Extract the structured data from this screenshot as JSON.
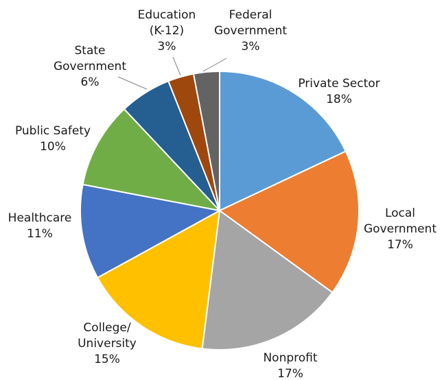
{
  "chart_data": {
    "type": "pie",
    "title": "",
    "start_angle_deg": 0,
    "direction": "clockwise",
    "slices": [
      {
        "label_lines": [
          "Private Sector"
        ],
        "percent_label": "18%",
        "value": 18,
        "color": "#5b9bd5"
      },
      {
        "label_lines": [
          "Local",
          "Government"
        ],
        "percent_label": "17%",
        "value": 17,
        "color": "#ed7d31"
      },
      {
        "label_lines": [
          "Nonprofit"
        ],
        "percent_label": "17%",
        "value": 17,
        "color": "#a5a5a5"
      },
      {
        "label_lines": [
          "College/",
          "University"
        ],
        "percent_label": "15%",
        "value": 15,
        "color": "#ffc000"
      },
      {
        "label_lines": [
          "Healthcare"
        ],
        "percent_label": "11%",
        "value": 11,
        "color": "#4472c4"
      },
      {
        "label_lines": [
          "Public Safety"
        ],
        "percent_label": "10%",
        "value": 10,
        "color": "#70ad47"
      },
      {
        "label_lines": [
          "State",
          "Government"
        ],
        "percent_label": "6%",
        "value": 6,
        "color": "#255e91"
      },
      {
        "label_lines": [
          "Education",
          "(K-12)"
        ],
        "percent_label": "3%",
        "value": 3,
        "color": "#9e480e"
      },
      {
        "label_lines": [
          "Federal",
          "Government"
        ],
        "percent_label": "3%",
        "value": 3,
        "color": "#636363"
      }
    ]
  }
}
